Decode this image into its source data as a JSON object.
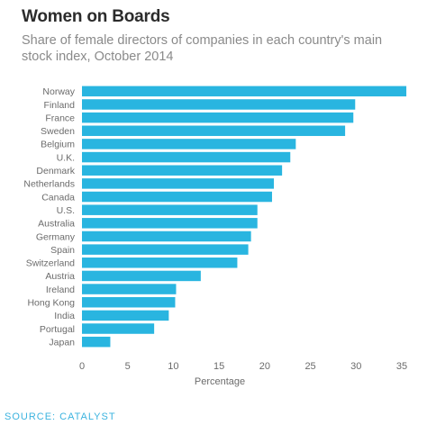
{
  "title": "Women on Boards",
  "subtitle": "Share of female directors of companies in each country's main stock index, October 2014",
  "source": "SOURCE: CATALYST",
  "chart_data": {
    "type": "bar",
    "orientation": "horizontal",
    "title": "Women on Boards",
    "subtitle": "Share of female directors of companies in each country's main stock index, October 2014",
    "xlabel": "Percentage",
    "ylabel": "",
    "categories": [
      "Norway",
      "Finland",
      "France",
      "Sweden",
      "Belgium",
      "U.K.",
      "Denmark",
      "Netherlands",
      "Canada",
      "U.S.",
      "Australia",
      "Germany",
      "Spain",
      "Switzerland",
      "Austria",
      "Ireland",
      "Hong Kong",
      "India",
      "Portugal",
      "Japan"
    ],
    "values": [
      35.5,
      29.9,
      29.7,
      28.8,
      23.4,
      22.8,
      21.9,
      21.0,
      20.8,
      19.2,
      19.2,
      18.5,
      18.2,
      17.0,
      13.0,
      10.3,
      10.2,
      9.5,
      7.9,
      3.1
    ],
    "xlim": [
      0,
      35
    ],
    "xticks": [
      0,
      5,
      10,
      15,
      20,
      25,
      30,
      35
    ],
    "grid": false,
    "legend": "none",
    "bar_color": "#29b5e0"
  }
}
